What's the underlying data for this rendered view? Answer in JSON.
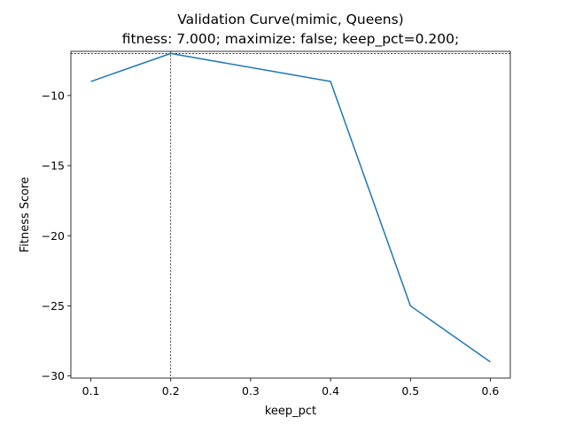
{
  "chart_data": {
    "type": "line",
    "title": "Validation Curve(mimic, Queens)",
    "subtitle": "fitness: 7.000; maximize: false; keep_pct=0.200;",
    "xlabel": "keep_pct",
    "ylabel": "Fitness Score",
    "xlim": [
      0.075,
      0.625
    ],
    "ylim": [
      -30.15,
      -6.85
    ],
    "x_ticks": [
      0.1,
      0.2,
      0.3,
      0.4,
      0.5,
      0.6
    ],
    "x_tick_labels": [
      "0.1",
      "0.2",
      "0.3",
      "0.4",
      "0.5",
      "0.6"
    ],
    "y_ticks": [
      -10,
      -15,
      -20,
      -25,
      -30
    ],
    "y_tick_labels": [
      "−10",
      "−15",
      "−20",
      "−25",
      "−30"
    ],
    "grid": false,
    "series": [
      {
        "x": [
          0.1,
          0.2,
          0.4,
          0.5,
          0.6
        ],
        "y": [
          -9,
          -7,
          -9,
          -25,
          -29
        ],
        "color": "#1f77b4"
      }
    ],
    "reference_lines": [
      {
        "axis": "x",
        "value": 0.2,
        "style": "dashed",
        "color": "#000000"
      },
      {
        "axis": "y",
        "value": -7,
        "style": "dashed",
        "color": "#000000"
      }
    ]
  }
}
